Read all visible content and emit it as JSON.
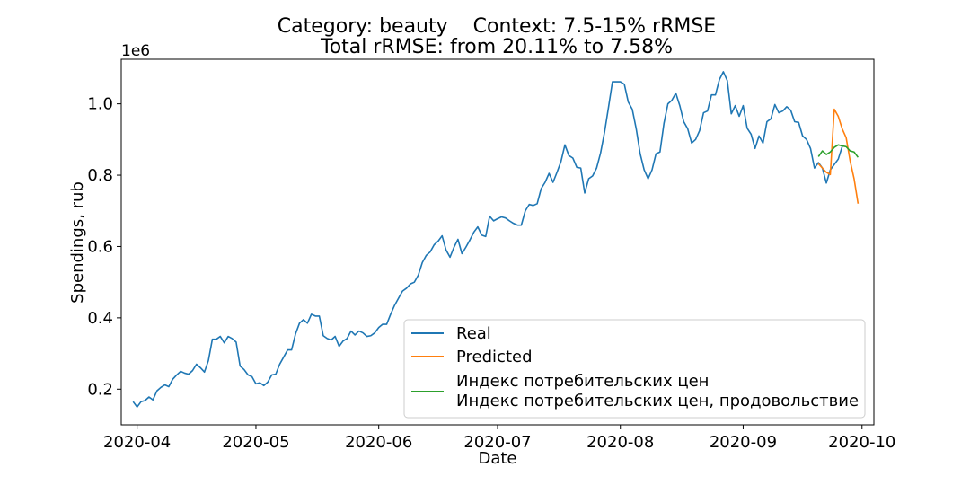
{
  "chart_data": {
    "type": "line",
    "title_line1": "Category: beauty    Context: 7.5-15% rRMSE",
    "title_line2": "Total rRMSE: from 20.11% to 7.58%",
    "xlabel": "Date",
    "ylabel": "Spendings, rub",
    "y_offset_label": "1e6",
    "ylim": [
      0.1,
      1.125
    ],
    "xlim": [
      "2020-03-28",
      "2020-10-04"
    ],
    "x_ticks": [
      {
        "date": "2020-04-01",
        "label": "2020-04"
      },
      {
        "date": "2020-05-01",
        "label": "2020-05"
      },
      {
        "date": "2020-06-01",
        "label": "2020-06"
      },
      {
        "date": "2020-07-01",
        "label": "2020-07"
      },
      {
        "date": "2020-08-01",
        "label": "2020-08"
      },
      {
        "date": "2020-09-01",
        "label": "2020-09"
      },
      {
        "date": "2020-10-01",
        "label": "2020-10"
      }
    ],
    "y_ticks": [
      {
        "value": 0.2,
        "label": "0.2"
      },
      {
        "value": 0.4,
        "label": "0.4"
      },
      {
        "value": 0.6,
        "label": "0.6"
      },
      {
        "value": 0.8,
        "label": "0.8"
      },
      {
        "value": 1.0,
        "label": "1.0"
      }
    ],
    "grid": false,
    "legend_position": "lower-right",
    "series": [
      {
        "name": "Real",
        "color": "#1f77b4",
        "points": [
          [
            "2020-03-31",
            0.165
          ],
          [
            "2020-04-01",
            0.15
          ],
          [
            "2020-04-02",
            0.165
          ],
          [
            "2020-04-03",
            0.168
          ],
          [
            "2020-04-04",
            0.178
          ],
          [
            "2020-04-05",
            0.17
          ],
          [
            "2020-04-06",
            0.195
          ],
          [
            "2020-04-07",
            0.205
          ],
          [
            "2020-04-08",
            0.212
          ],
          [
            "2020-04-09",
            0.207
          ],
          [
            "2020-04-10",
            0.228
          ],
          [
            "2020-04-11",
            0.24
          ],
          [
            "2020-04-12",
            0.25
          ],
          [
            "2020-04-13",
            0.245
          ],
          [
            "2020-04-14",
            0.242
          ],
          [
            "2020-04-15",
            0.252
          ],
          [
            "2020-04-16",
            0.27
          ],
          [
            "2020-04-17",
            0.26
          ],
          [
            "2020-04-18",
            0.248
          ],
          [
            "2020-04-19",
            0.28
          ],
          [
            "2020-04-20",
            0.34
          ],
          [
            "2020-04-21",
            0.34
          ],
          [
            "2020-04-22",
            0.348
          ],
          [
            "2020-04-23",
            0.33
          ],
          [
            "2020-04-24",
            0.348
          ],
          [
            "2020-04-25",
            0.342
          ],
          [
            "2020-04-26",
            0.332
          ],
          [
            "2020-04-27",
            0.265
          ],
          [
            "2020-04-28",
            0.255
          ],
          [
            "2020-04-29",
            0.24
          ],
          [
            "2020-04-30",
            0.235
          ],
          [
            "2020-05-01",
            0.215
          ],
          [
            "2020-05-02",
            0.218
          ],
          [
            "2020-05-03",
            0.21
          ],
          [
            "2020-05-04",
            0.22
          ],
          [
            "2020-05-05",
            0.24
          ],
          [
            "2020-05-06",
            0.242
          ],
          [
            "2020-05-07",
            0.27
          ],
          [
            "2020-05-08",
            0.29
          ],
          [
            "2020-05-09",
            0.31
          ],
          [
            "2020-05-10",
            0.31
          ],
          [
            "2020-05-11",
            0.355
          ],
          [
            "2020-05-12",
            0.385
          ],
          [
            "2020-05-13",
            0.395
          ],
          [
            "2020-05-14",
            0.385
          ],
          [
            "2020-05-15",
            0.41
          ],
          [
            "2020-05-16",
            0.405
          ],
          [
            "2020-05-17",
            0.405
          ],
          [
            "2020-05-18",
            0.35
          ],
          [
            "2020-05-19",
            0.342
          ],
          [
            "2020-05-20",
            0.338
          ],
          [
            "2020-05-21",
            0.348
          ],
          [
            "2020-05-22",
            0.32
          ],
          [
            "2020-05-23",
            0.335
          ],
          [
            "2020-05-24",
            0.342
          ],
          [
            "2020-05-25",
            0.363
          ],
          [
            "2020-05-26",
            0.352
          ],
          [
            "2020-05-27",
            0.363
          ],
          [
            "2020-05-28",
            0.358
          ],
          [
            "2020-05-29",
            0.348
          ],
          [
            "2020-05-30",
            0.35
          ],
          [
            "2020-05-31",
            0.358
          ],
          [
            "2020-06-01",
            0.373
          ],
          [
            "2020-06-02",
            0.382
          ],
          [
            "2020-06-03",
            0.382
          ],
          [
            "2020-06-04",
            0.41
          ],
          [
            "2020-06-05",
            0.435
          ],
          [
            "2020-06-06",
            0.455
          ],
          [
            "2020-06-07",
            0.475
          ],
          [
            "2020-06-08",
            0.483
          ],
          [
            "2020-06-09",
            0.495
          ],
          [
            "2020-06-10",
            0.5
          ],
          [
            "2020-06-11",
            0.52
          ],
          [
            "2020-06-12",
            0.555
          ],
          [
            "2020-06-13",
            0.575
          ],
          [
            "2020-06-14",
            0.585
          ],
          [
            "2020-06-15",
            0.605
          ],
          [
            "2020-06-16",
            0.615
          ],
          [
            "2020-06-17",
            0.63
          ],
          [
            "2020-06-18",
            0.59
          ],
          [
            "2020-06-19",
            0.57
          ],
          [
            "2020-06-20",
            0.598
          ],
          [
            "2020-06-21",
            0.62
          ],
          [
            "2020-06-22",
            0.58
          ],
          [
            "2020-06-23",
            0.598
          ],
          [
            "2020-06-24",
            0.618
          ],
          [
            "2020-06-25",
            0.64
          ],
          [
            "2020-06-26",
            0.655
          ],
          [
            "2020-06-27",
            0.632
          ],
          [
            "2020-06-28",
            0.628
          ],
          [
            "2020-06-29",
            0.685
          ],
          [
            "2020-06-30",
            0.672
          ],
          [
            "2020-07-01",
            0.678
          ],
          [
            "2020-07-02",
            0.683
          ],
          [
            "2020-07-03",
            0.68
          ],
          [
            "2020-07-04",
            0.672
          ],
          [
            "2020-07-05",
            0.665
          ],
          [
            "2020-07-06",
            0.66
          ],
          [
            "2020-07-07",
            0.66
          ],
          [
            "2020-07-08",
            0.7
          ],
          [
            "2020-07-09",
            0.718
          ],
          [
            "2020-07-10",
            0.715
          ],
          [
            "2020-07-11",
            0.72
          ],
          [
            "2020-07-12",
            0.762
          ],
          [
            "2020-07-13",
            0.78
          ],
          [
            "2020-07-14",
            0.805
          ],
          [
            "2020-07-15",
            0.78
          ],
          [
            "2020-07-16",
            0.808
          ],
          [
            "2020-07-17",
            0.838
          ],
          [
            "2020-07-18",
            0.885
          ],
          [
            "2020-07-19",
            0.855
          ],
          [
            "2020-07-20",
            0.848
          ],
          [
            "2020-07-21",
            0.822
          ],
          [
            "2020-07-22",
            0.82
          ],
          [
            "2020-07-23",
            0.75
          ],
          [
            "2020-07-24",
            0.79
          ],
          [
            "2020-07-25",
            0.798
          ],
          [
            "2020-07-26",
            0.82
          ],
          [
            "2020-07-27",
            0.862
          ],
          [
            "2020-07-28",
            0.92
          ],
          [
            "2020-07-29",
            0.99
          ],
          [
            "2020-07-30",
            1.062
          ],
          [
            "2020-07-31",
            1.062
          ],
          [
            "2020-08-01",
            1.062
          ],
          [
            "2020-08-02",
            1.055
          ],
          [
            "2020-08-03",
            1.005
          ],
          [
            "2020-08-04",
            0.985
          ],
          [
            "2020-08-05",
            0.93
          ],
          [
            "2020-08-06",
            0.86
          ],
          [
            "2020-08-07",
            0.815
          ],
          [
            "2020-08-08",
            0.79
          ],
          [
            "2020-08-09",
            0.815
          ],
          [
            "2020-08-10",
            0.86
          ],
          [
            "2020-08-11",
            0.865
          ],
          [
            "2020-08-12",
            0.945
          ],
          [
            "2020-08-13",
            1.0
          ],
          [
            "2020-08-14",
            1.01
          ],
          [
            "2020-08-15",
            1.03
          ],
          [
            "2020-08-16",
            0.995
          ],
          [
            "2020-08-17",
            0.95
          ],
          [
            "2020-08-18",
            0.93
          ],
          [
            "2020-08-19",
            0.89
          ],
          [
            "2020-08-20",
            0.9
          ],
          [
            "2020-08-21",
            0.925
          ],
          [
            "2020-08-22",
            0.975
          ],
          [
            "2020-08-23",
            0.98
          ],
          [
            "2020-08-24",
            1.025
          ],
          [
            "2020-08-25",
            1.025
          ],
          [
            "2020-08-26",
            1.068
          ],
          [
            "2020-08-27",
            1.09
          ],
          [
            "2020-08-28",
            1.065
          ],
          [
            "2020-08-29",
            0.972
          ],
          [
            "2020-08-30",
            0.995
          ],
          [
            "2020-08-31",
            0.965
          ],
          [
            "2020-09-01",
            0.995
          ],
          [
            "2020-09-02",
            0.932
          ],
          [
            "2020-09-03",
            0.915
          ],
          [
            "2020-09-04",
            0.875
          ],
          [
            "2020-09-05",
            0.91
          ],
          [
            "2020-09-06",
            0.89
          ],
          [
            "2020-09-07",
            0.95
          ],
          [
            "2020-09-08",
            0.958
          ],
          [
            "2020-09-09",
            0.998
          ],
          [
            "2020-09-10",
            0.975
          ],
          [
            "2020-09-11",
            0.98
          ],
          [
            "2020-09-12",
            0.992
          ],
          [
            "2020-09-13",
            0.982
          ],
          [
            "2020-09-14",
            0.95
          ],
          [
            "2020-09-15",
            0.948
          ],
          [
            "2020-09-16",
            0.91
          ],
          [
            "2020-09-17",
            0.9
          ],
          [
            "2020-09-18",
            0.875
          ],
          [
            "2020-09-19",
            0.82
          ],
          [
            "2020-09-20",
            0.835
          ],
          [
            "2020-09-21",
            0.82
          ],
          [
            "2020-09-22",
            0.778
          ],
          [
            "2020-09-23",
            0.815
          ],
          [
            "2020-09-24",
            0.83
          ],
          [
            "2020-09-25",
            0.845
          ],
          [
            "2020-09-26",
            0.88
          ]
        ]
      },
      {
        "name": "Predicted",
        "color": "#ff7f0e",
        "points": [
          [
            "2020-09-20",
            0.832
          ],
          [
            "2020-09-21",
            0.82
          ],
          [
            "2020-09-22",
            0.808
          ],
          [
            "2020-09-23",
            0.802
          ],
          [
            "2020-09-24",
            0.985
          ],
          [
            "2020-09-25",
            0.965
          ],
          [
            "2020-09-26",
            0.93
          ],
          [
            "2020-09-27",
            0.905
          ],
          [
            "2020-09-28",
            0.84
          ],
          [
            "2020-09-29",
            0.79
          ],
          [
            "2020-09-30",
            0.72
          ]
        ]
      },
      {
        "name": "Индекс потребительских цен\nИндекс потребительских цен, продовольствие",
        "color": "#2ca02c",
        "points": [
          [
            "2020-09-20",
            0.852
          ],
          [
            "2020-09-21",
            0.868
          ],
          [
            "2020-09-22",
            0.858
          ],
          [
            "2020-09-23",
            0.865
          ],
          [
            "2020-09-24",
            0.878
          ],
          [
            "2020-09-25",
            0.885
          ],
          [
            "2020-09-26",
            0.882
          ],
          [
            "2020-09-27",
            0.88
          ],
          [
            "2020-09-28",
            0.868
          ],
          [
            "2020-09-29",
            0.865
          ],
          [
            "2020-09-30",
            0.85
          ]
        ]
      }
    ]
  }
}
